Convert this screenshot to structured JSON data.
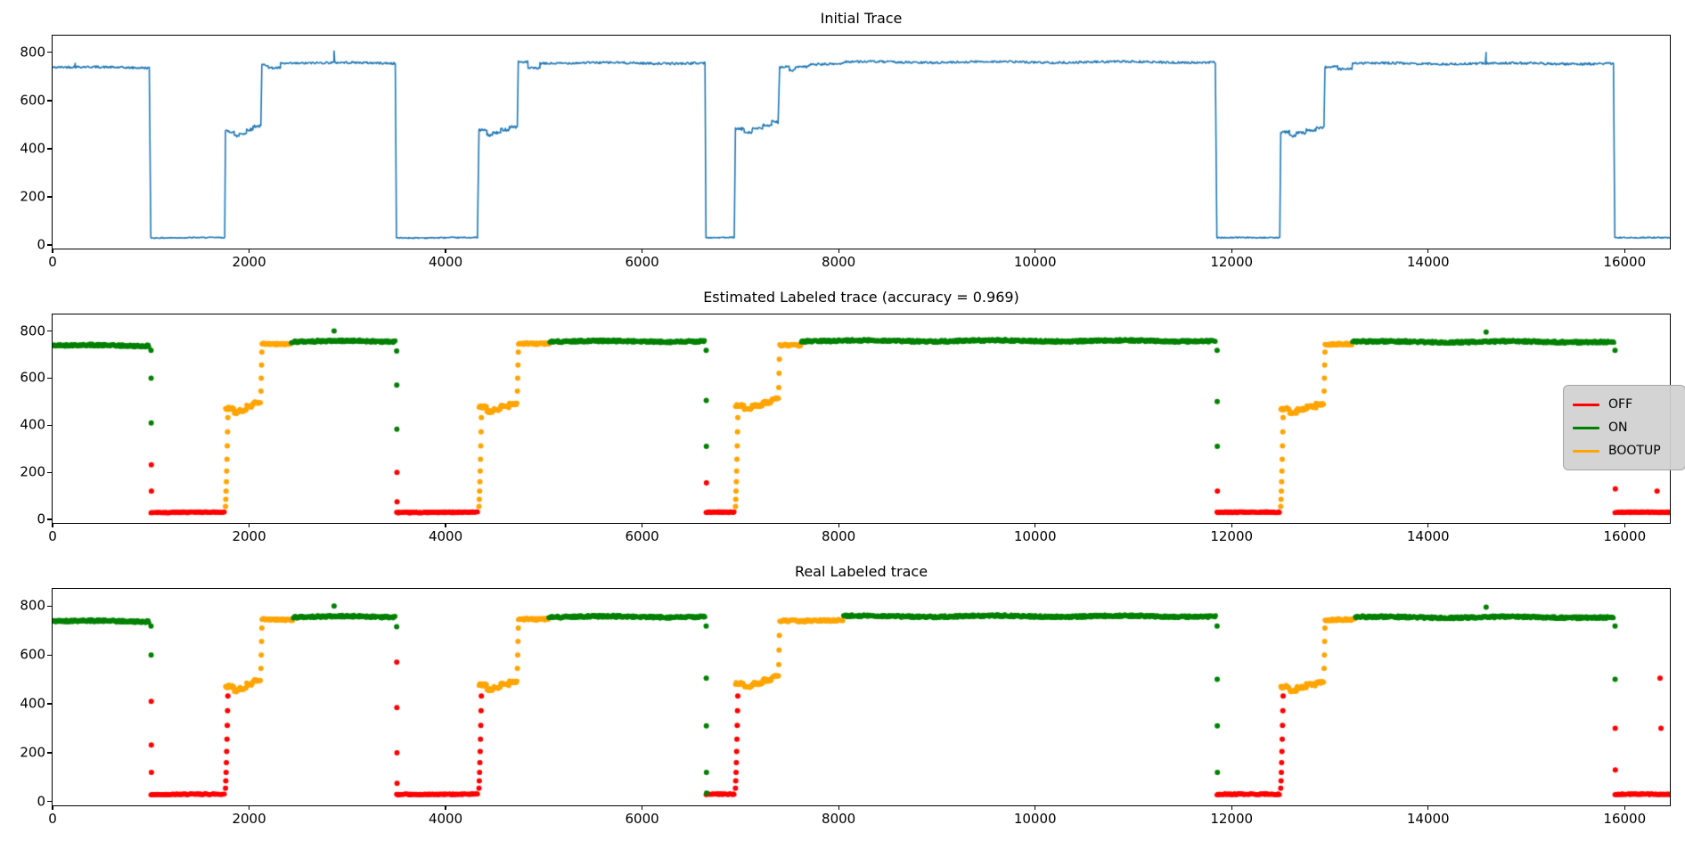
{
  "figure": {
    "background": "#ffffff",
    "axis_color": "#000000"
  },
  "class_colors": {
    "OFF": "#ff0000",
    "ON": "#008000",
    "BOOTUP": "#ffa500"
  },
  "chart_data": [
    {
      "type": "line",
      "title": "Initial Trace",
      "line_color": "#1f77b4",
      "xlim": [
        0,
        16460
      ],
      "ylim": [
        -15,
        870
      ],
      "x_ticks": [
        0,
        2000,
        4000,
        6000,
        8000,
        10000,
        12000,
        14000,
        16000
      ],
      "y_ticks": [
        0,
        200,
        400,
        600,
        800
      ],
      "grid": false,
      "segments": [
        [
          0,
          985,
          738
        ],
        [
          1000,
          1755,
          30
        ],
        [
          1760,
          1850,
          470
        ],
        [
          1850,
          1900,
          452
        ],
        [
          1900,
          1975,
          463
        ],
        [
          1975,
          2040,
          480
        ],
        [
          2040,
          2120,
          495
        ],
        [
          2130,
          2200,
          750
        ],
        [
          2200,
          2320,
          738
        ],
        [
          2320,
          3490,
          756
        ],
        [
          3500,
          4330,
          30
        ],
        [
          4340,
          4420,
          475
        ],
        [
          4420,
          4480,
          455
        ],
        [
          4480,
          4560,
          465
        ],
        [
          4560,
          4650,
          480
        ],
        [
          4650,
          4730,
          492
        ],
        [
          4740,
          4840,
          762
        ],
        [
          4840,
          4960,
          737
        ],
        [
          4960,
          6640,
          756
        ],
        [
          6650,
          6940,
          30
        ],
        [
          6950,
          7040,
          480
        ],
        [
          7040,
          7120,
          468
        ],
        [
          7120,
          7230,
          483
        ],
        [
          7230,
          7320,
          497
        ],
        [
          7320,
          7390,
          512
        ],
        [
          7400,
          7500,
          742
        ],
        [
          7500,
          7560,
          728
        ],
        [
          7560,
          7700,
          742
        ],
        [
          7700,
          8050,
          752
        ],
        [
          8050,
          11840,
          760
        ],
        [
          11850,
          12490,
          30
        ],
        [
          12500,
          12590,
          470
        ],
        [
          12590,
          12660,
          455
        ],
        [
          12660,
          12760,
          468
        ],
        [
          12760,
          12860,
          480
        ],
        [
          12860,
          12940,
          490
        ],
        [
          12950,
          13080,
          742
        ],
        [
          13080,
          13230,
          732
        ],
        [
          13230,
          15890,
          754
        ],
        [
          15900,
          16460,
          30
        ]
      ],
      "spikes": [
        [
          230,
          755
        ],
        [
          2865,
          806
        ],
        [
          14590,
          800
        ]
      ]
    },
    {
      "type": "scatter",
      "title": "Estimated Labeled trace (accuracy = 0.969)",
      "legend": {
        "position": "right",
        "items": [
          {
            "label": "OFF",
            "color": "#ff0000"
          },
          {
            "label": "ON",
            "color": "#008000"
          },
          {
            "label": "BOOTUP",
            "color": "#ffa500"
          }
        ]
      },
      "xlim": [
        0,
        16460
      ],
      "ylim": [
        -15,
        870
      ],
      "x_ticks": [
        0,
        2000,
        4000,
        6000,
        8000,
        10000,
        12000,
        14000,
        16000
      ],
      "y_ticks": [
        0,
        200,
        400,
        600,
        800
      ],
      "runs": [
        [
          0,
          985,
          738,
          "ON"
        ],
        [
          1000,
          1755,
          30,
          "OFF"
        ],
        [
          1760,
          1850,
          470,
          "BOOTUP"
        ],
        [
          1850,
          1900,
          452,
          "BOOTUP"
        ],
        [
          1900,
          1975,
          463,
          "BOOTUP"
        ],
        [
          1975,
          2040,
          480,
          "BOOTUP"
        ],
        [
          2040,
          2120,
          495,
          "BOOTUP"
        ],
        [
          2130,
          2430,
          746,
          "BOOTUP"
        ],
        [
          2430,
          3490,
          756,
          "ON"
        ],
        [
          3500,
          4330,
          30,
          "OFF"
        ],
        [
          4340,
          4420,
          475,
          "BOOTUP"
        ],
        [
          4420,
          4480,
          455,
          "BOOTUP"
        ],
        [
          4480,
          4560,
          465,
          "BOOTUP"
        ],
        [
          4560,
          4650,
          480,
          "BOOTUP"
        ],
        [
          4650,
          4730,
          492,
          "BOOTUP"
        ],
        [
          4740,
          5060,
          748,
          "BOOTUP"
        ],
        [
          5060,
          6640,
          756,
          "ON"
        ],
        [
          6650,
          6940,
          30,
          "OFF"
        ],
        [
          6950,
          7040,
          480,
          "BOOTUP"
        ],
        [
          7040,
          7120,
          468,
          "BOOTUP"
        ],
        [
          7120,
          7230,
          483,
          "BOOTUP"
        ],
        [
          7230,
          7320,
          497,
          "BOOTUP"
        ],
        [
          7320,
          7390,
          512,
          "BOOTUP"
        ],
        [
          7400,
          7620,
          741,
          "BOOTUP"
        ],
        [
          7620,
          11840,
          758,
          "ON"
        ],
        [
          11850,
          12490,
          30,
          "OFF"
        ],
        [
          12500,
          12590,
          470,
          "BOOTUP"
        ],
        [
          12590,
          12660,
          455,
          "BOOTUP"
        ],
        [
          12660,
          12760,
          468,
          "BOOTUP"
        ],
        [
          12760,
          12860,
          480,
          "BOOTUP"
        ],
        [
          12860,
          12940,
          490,
          "BOOTUP"
        ],
        [
          12950,
          13230,
          745,
          "BOOTUP"
        ],
        [
          13230,
          15890,
          754,
          "ON"
        ],
        [
          15900,
          16460,
          30,
          "OFF"
        ]
      ],
      "dots": [
        [
          1002,
          718,
          "ON"
        ],
        [
          1003,
          600,
          "ON"
        ],
        [
          1004,
          410,
          "ON"
        ],
        [
          1005,
          232,
          "OFF"
        ],
        [
          1006,
          120,
          "OFF"
        ],
        [
          2865,
          800,
          "ON"
        ],
        [
          3502,
          715,
          "ON"
        ],
        [
          3503,
          570,
          "ON"
        ],
        [
          3504,
          383,
          "ON"
        ],
        [
          3505,
          200,
          "OFF"
        ],
        [
          3506,
          75,
          "OFF"
        ],
        [
          6652,
          718,
          "ON"
        ],
        [
          6653,
          505,
          "ON"
        ],
        [
          6654,
          310,
          "ON"
        ],
        [
          6655,
          155,
          "OFF"
        ],
        [
          11852,
          718,
          "ON"
        ],
        [
          11853,
          500,
          "ON"
        ],
        [
          11854,
          310,
          "ON"
        ],
        [
          11855,
          120,
          "OFF"
        ],
        [
          14590,
          795,
          "ON"
        ],
        [
          15902,
          718,
          "ON"
        ],
        [
          15903,
          500,
          "ON"
        ],
        [
          15904,
          300,
          "ON"
        ],
        [
          15905,
          130,
          "OFF"
        ],
        [
          16330,
          120,
          "OFF"
        ]
      ],
      "columns": [
        {
          "x": 1760,
          "ys": [
            55,
            85,
            120,
            160,
            205,
            255,
            312,
            372,
            432
          ],
          "label": "BOOTUP"
        },
        {
          "x": 2121,
          "ys": [
            545,
            600,
            655,
            710
          ],
          "label": "BOOTUP"
        },
        {
          "x": 4340,
          "ys": [
            55,
            85,
            120,
            160,
            205,
            255,
            312,
            372,
            432
          ],
          "label": "BOOTUP"
        },
        {
          "x": 4731,
          "ys": [
            545,
            600,
            655,
            710
          ],
          "label": "BOOTUP"
        },
        {
          "x": 6950,
          "ys": [
            55,
            85,
            120,
            160,
            205,
            255,
            312,
            372,
            432
          ],
          "label": "BOOTUP"
        },
        {
          "x": 7391,
          "ys": [
            560,
            620,
            680
          ],
          "label": "BOOTUP"
        },
        {
          "x": 12500,
          "ys": [
            55,
            85,
            120,
            160,
            205,
            255,
            312,
            372,
            432
          ],
          "label": "BOOTUP"
        },
        {
          "x": 12941,
          "ys": [
            545,
            600,
            655,
            710
          ],
          "label": "BOOTUP"
        }
      ]
    },
    {
      "type": "scatter",
      "title": "Real Labeled trace",
      "xlim": [
        0,
        16460
      ],
      "ylim": [
        -15,
        870
      ],
      "x_ticks": [
        0,
        2000,
        4000,
        6000,
        8000,
        10000,
        12000,
        14000,
        16000
      ],
      "y_ticks": [
        0,
        200,
        400,
        600,
        800
      ],
      "runs": [
        [
          0,
          985,
          738,
          "ON"
        ],
        [
          1000,
          1755,
          30,
          "OFF"
        ],
        [
          1760,
          1850,
          470,
          "BOOTUP"
        ],
        [
          1850,
          1900,
          452,
          "BOOTUP"
        ],
        [
          1900,
          1975,
          463,
          "BOOTUP"
        ],
        [
          1975,
          2040,
          480,
          "BOOTUP"
        ],
        [
          2040,
          2120,
          495,
          "BOOTUP"
        ],
        [
          2130,
          2450,
          746,
          "BOOTUP"
        ],
        [
          2450,
          3490,
          756,
          "ON"
        ],
        [
          3500,
          4330,
          30,
          "OFF"
        ],
        [
          4340,
          4420,
          475,
          "BOOTUP"
        ],
        [
          4420,
          4480,
          455,
          "BOOTUP"
        ],
        [
          4480,
          4560,
          465,
          "BOOTUP"
        ],
        [
          4560,
          4650,
          480,
          "BOOTUP"
        ],
        [
          4650,
          4730,
          492,
          "BOOTUP"
        ],
        [
          4740,
          5050,
          748,
          "BOOTUP"
        ],
        [
          5050,
          6640,
          756,
          "ON"
        ],
        [
          6650,
          6940,
          30,
          "OFF"
        ],
        [
          6950,
          7040,
          480,
          "BOOTUP"
        ],
        [
          7040,
          7120,
          468,
          "BOOTUP"
        ],
        [
          7120,
          7230,
          483,
          "BOOTUP"
        ],
        [
          7230,
          7320,
          497,
          "BOOTUP"
        ],
        [
          7320,
          7390,
          512,
          "BOOTUP"
        ],
        [
          7400,
          8050,
          741,
          "BOOTUP"
        ],
        [
          8050,
          11840,
          758,
          "ON"
        ],
        [
          11850,
          12490,
          30,
          "OFF"
        ],
        [
          12500,
          12590,
          470,
          "BOOTUP"
        ],
        [
          12590,
          12660,
          455,
          "BOOTUP"
        ],
        [
          12660,
          12760,
          468,
          "BOOTUP"
        ],
        [
          12760,
          12860,
          480,
          "BOOTUP"
        ],
        [
          12860,
          12940,
          490,
          "BOOTUP"
        ],
        [
          12950,
          13260,
          745,
          "BOOTUP"
        ],
        [
          13260,
          15890,
          754,
          "ON"
        ],
        [
          15900,
          16460,
          30,
          "OFF"
        ]
      ],
      "dots": [
        [
          1002,
          718,
          "ON"
        ],
        [
          1003,
          600,
          "ON"
        ],
        [
          1004,
          410,
          "OFF"
        ],
        [
          1005,
          232,
          "OFF"
        ],
        [
          1006,
          120,
          "OFF"
        ],
        [
          2865,
          800,
          "ON"
        ],
        [
          3502,
          715,
          "ON"
        ],
        [
          3503,
          570,
          "OFF"
        ],
        [
          3504,
          385,
          "OFF"
        ],
        [
          3505,
          200,
          "OFF"
        ],
        [
          3506,
          75,
          "OFF"
        ],
        [
          6652,
          718,
          "ON"
        ],
        [
          6653,
          505,
          "ON"
        ],
        [
          6654,
          310,
          "ON"
        ],
        [
          6655,
          120,
          "ON"
        ],
        [
          6656,
          35,
          "ON"
        ],
        [
          11852,
          718,
          "ON"
        ],
        [
          11853,
          500,
          "ON"
        ],
        [
          11854,
          310,
          "ON"
        ],
        [
          11855,
          120,
          "ON"
        ],
        [
          14590,
          795,
          "ON"
        ],
        [
          15902,
          718,
          "ON"
        ],
        [
          15903,
          500,
          "ON"
        ],
        [
          15904,
          300,
          "OFF"
        ],
        [
          15905,
          130,
          "OFF"
        ],
        [
          16360,
          505,
          "OFF"
        ],
        [
          16370,
          300,
          "OFF"
        ]
      ],
      "columns": [
        {
          "x": 1760,
          "ys": [
            55,
            85,
            120,
            160,
            205,
            255,
            312,
            372,
            432
          ],
          "label": "OFF"
        },
        {
          "x": 2121,
          "ys": [
            545,
            600,
            655,
            710
          ],
          "label": "BOOTUP"
        },
        {
          "x": 4340,
          "ys": [
            55,
            85,
            120,
            160,
            205,
            255,
            312,
            372,
            432
          ],
          "label": "OFF"
        },
        {
          "x": 4731,
          "ys": [
            545,
            600,
            655,
            710
          ],
          "label": "BOOTUP"
        },
        {
          "x": 6950,
          "ys": [
            55,
            85,
            120,
            160,
            205,
            255,
            312,
            372,
            432
          ],
          "label": "OFF"
        },
        {
          "x": 7391,
          "ys": [
            560,
            620,
            680
          ],
          "label": "BOOTUP"
        },
        {
          "x": 12500,
          "ys": [
            55,
            85,
            120,
            160,
            205,
            255,
            312,
            372,
            432
          ],
          "label": "OFF"
        },
        {
          "x": 12941,
          "ys": [
            545,
            600,
            655,
            710
          ],
          "label": "BOOTUP"
        }
      ]
    }
  ]
}
